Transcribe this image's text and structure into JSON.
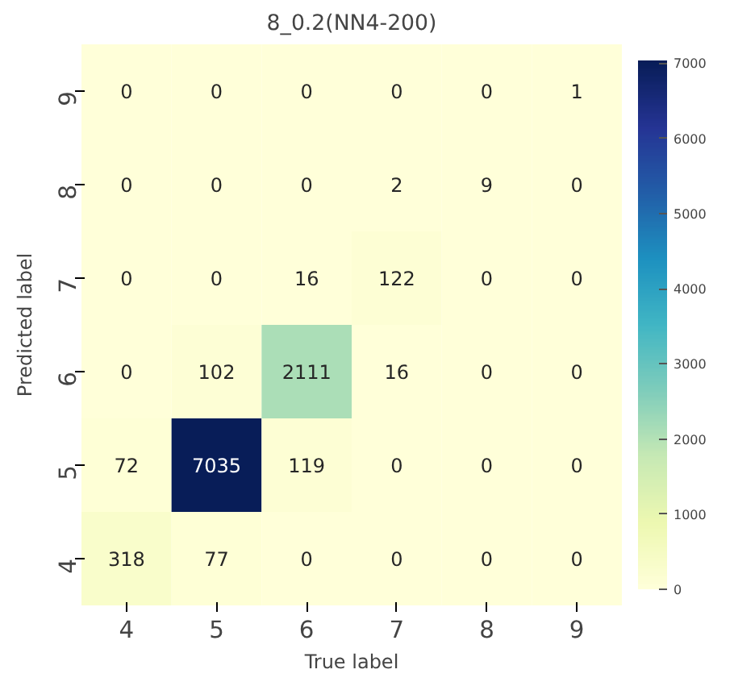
{
  "chart_data": {
    "type": "heatmap",
    "title": "8_0.2(NN4-200)",
    "xlabel": "True label",
    "ylabel": "Predicted label",
    "categories": [
      "4",
      "5",
      "6",
      "7",
      "8",
      "9"
    ],
    "y_categories": [
      "9",
      "8",
      "7",
      "6",
      "5",
      "4"
    ],
    "cells": [
      [
        0,
        0,
        0,
        0,
        0,
        1
      ],
      [
        0,
        0,
        0,
        2,
        9,
        0
      ],
      [
        0,
        0,
        16,
        122,
        0,
        0
      ],
      [
        0,
        102,
        2111,
        16,
        0,
        0
      ],
      [
        72,
        7035,
        119,
        0,
        0,
        0
      ],
      [
        318,
        77,
        0,
        0,
        0,
        0
      ]
    ],
    "data_labels": true,
    "clim": [
      0,
      7035
    ],
    "cticks": [
      0,
      1000,
      2000,
      3000,
      4000,
      5000,
      6000,
      7000
    ]
  }
}
